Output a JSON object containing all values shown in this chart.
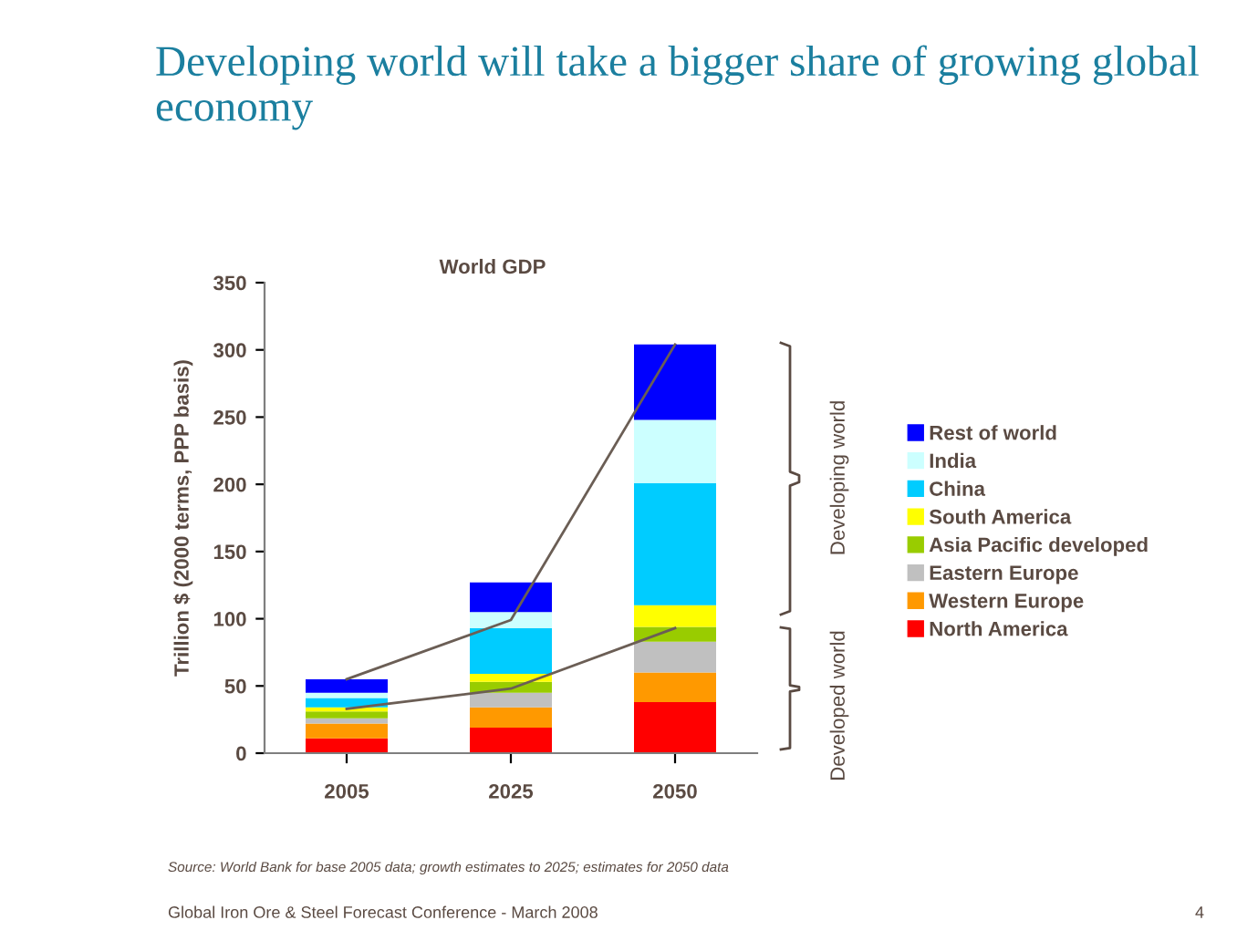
{
  "chart_data": {
    "type": "bar",
    "stacked": true,
    "title": "Developing world will take a bigger share of growing global economy",
    "subtitle": "World GDP",
    "ylabel": "Trillion $ (2000 terms, PPP basis)",
    "categories": [
      "2005",
      "2025",
      "2050"
    ],
    "series": [
      {
        "name": "North America",
        "color": "#ff0000",
        "values": [
          11,
          19,
          38
        ]
      },
      {
        "name": "Western Europe",
        "color": "#ff9900",
        "values": [
          11,
          15,
          22
        ]
      },
      {
        "name": "Eastern Europe",
        "color": "#c0c0c0",
        "values": [
          4,
          11,
          23
        ]
      },
      {
        "name": "Asia Pacific developed",
        "color": "#99cc00",
        "values": [
          5,
          8,
          11
        ]
      },
      {
        "name": "South America",
        "color": "#ffff00",
        "values": [
          3,
          6,
          16
        ]
      },
      {
        "name": "China",
        "color": "#00ccff",
        "values": [
          7,
          34,
          91
        ]
      },
      {
        "name": "India",
        "color": "#ccffff",
        "values": [
          4,
          12,
          47
        ]
      },
      {
        "name": "Rest of world",
        "color": "#0000ff",
        "values": [
          10,
          22,
          56
        ]
      },
      {
        "type": "line",
        "color": "#6b5e55",
        "values": [
          55,
          99,
          304
        ]
      },
      {
        "type": "line",
        "color": "#6b5e55",
        "values": [
          33,
          48,
          93
        ]
      }
    ],
    "ylim": [
      0,
      350
    ],
    "yticks": [
      0,
      50,
      100,
      150,
      200,
      250,
      300,
      350
    ],
    "legend": "right",
    "grid": false,
    "annotations": [
      "Developing world",
      "Developed world",
      "Source: World Bank for base 2005 data; growth estimates to 2025; estimates for 2050 data",
      "Global Iron Ore & Steel Forecast Conference - March 2008",
      "4"
    ]
  }
}
